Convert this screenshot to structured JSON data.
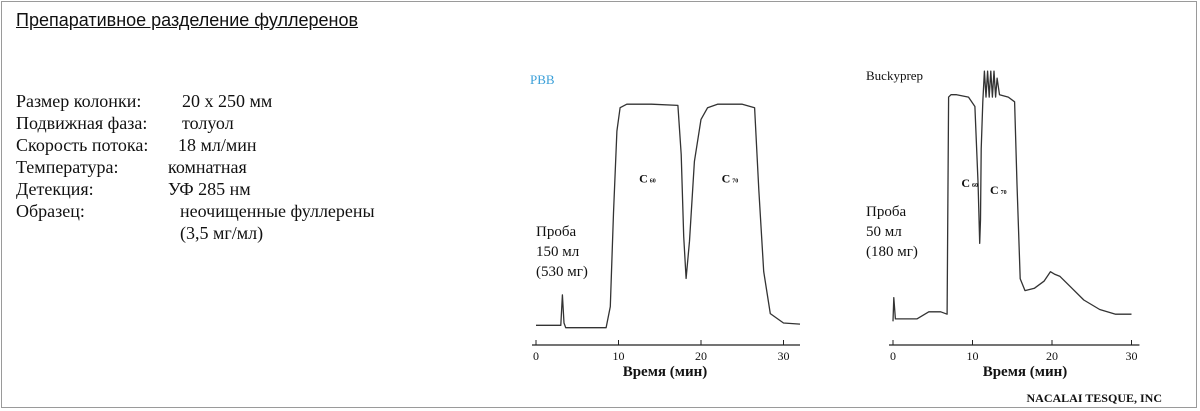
{
  "slide": {
    "title": "Препаративное разделение фуллеренов",
    "credit": "NACALAI TESQUE, INC"
  },
  "params": [
    {
      "label": "Размер колонки:",
      "value": "20 x 250 мм"
    },
    {
      "label": "Подвижная фаза:",
      "value": "толуол"
    },
    {
      "label": "Скорость потока:",
      "value": "18 мл/мин"
    },
    {
      "label": "Температура:",
      "value": "комнатная"
    },
    {
      "label": "Детекция:",
      "value": "УФ 285 нм"
    },
    {
      "label": "Образец:",
      "value": "неочищенные фуллерены",
      "value2": "(3,5 мг/мл)"
    }
  ],
  "colors": {
    "pbb_label": "#3a9fd8",
    "trace": "#333333",
    "text": "#111111",
    "frame": "#9a9a9a"
  },
  "chart_data": [
    {
      "type": "line",
      "column_label": "PBB",
      "xlabel": "Время (мин)",
      "xticks": [
        0,
        10,
        20,
        30
      ],
      "xlim": [
        0,
        32
      ],
      "ylim": [
        0,
        1
      ],
      "sample_lines": [
        "Проба",
        "150 мл",
        "(530 мг)"
      ],
      "peak_labels": [
        {
          "text": "C",
          "sub": "60",
          "x": 12.5,
          "y": 0.63
        },
        {
          "text": "C",
          "sub": "70",
          "x": 22.5,
          "y": 0.63
        }
      ],
      "series": [
        {
          "x": [
            0,
            3.0,
            3.2,
            3.4,
            3.6,
            8.5,
            9.0,
            9.4,
            9.8,
            10.2,
            11,
            14,
            17.2,
            17.6,
            17.9,
            18.2,
            18.6,
            19.2,
            20.0,
            20.8,
            22,
            25,
            26.5,
            27.0,
            27.6,
            28.4,
            30,
            32
          ],
          "y": [
            0.02,
            0.02,
            0.15,
            0.03,
            0.01,
            0.01,
            0.1,
            0.5,
            0.85,
            0.95,
            0.965,
            0.965,
            0.96,
            0.75,
            0.4,
            0.22,
            0.38,
            0.72,
            0.9,
            0.95,
            0.965,
            0.965,
            0.95,
            0.6,
            0.25,
            0.07,
            0.03,
            0.025
          ]
        }
      ]
    },
    {
      "type": "line",
      "column_label": "Buckyprep",
      "xlabel": "Время (мин)",
      "xticks": [
        0,
        10,
        20,
        30
      ],
      "xlim": [
        0,
        31
      ],
      "ylim": [
        0,
        1
      ],
      "sample_lines": [
        "Проба",
        "50 мл",
        "(180 мг)"
      ],
      "peak_labels": [
        {
          "text": "C",
          "sub": "60",
          "x": 8.6,
          "y": 0.59
        },
        {
          "text": "C",
          "sub": "70",
          "x": 12.2,
          "y": 0.56
        }
      ],
      "series": [
        {
          "x": [
            0,
            0.1,
            0.3,
            0.5,
            3,
            4.5,
            6.0,
            6.8,
            7.0,
            7.3,
            8.0,
            9.5,
            10.3,
            10.7,
            10.9,
            11.0,
            11.1,
            11.3,
            11.5,
            11.7,
            11.9,
            12.1,
            12.3,
            12.5,
            12.7,
            12.9,
            13.1,
            13.4,
            14.5,
            15.3,
            15.6,
            16.0,
            16.6,
            17.8,
            19.0,
            19.8,
            20.3,
            21,
            22.5,
            24,
            26,
            28,
            30
          ],
          "y": [
            0.02,
            0.12,
            0.03,
            0.03,
            0.03,
            0.06,
            0.06,
            0.05,
            0.97,
            0.98,
            0.98,
            0.97,
            0.93,
            0.6,
            0.35,
            0.45,
            0.75,
            0.95,
            1.08,
            0.97,
            1.08,
            0.97,
            1.08,
            0.97,
            1.08,
            0.97,
            1.05,
            0.98,
            0.97,
            0.95,
            0.6,
            0.2,
            0.15,
            0.16,
            0.19,
            0.23,
            0.22,
            0.21,
            0.16,
            0.11,
            0.07,
            0.05,
            0.05
          ]
        }
      ]
    }
  ]
}
